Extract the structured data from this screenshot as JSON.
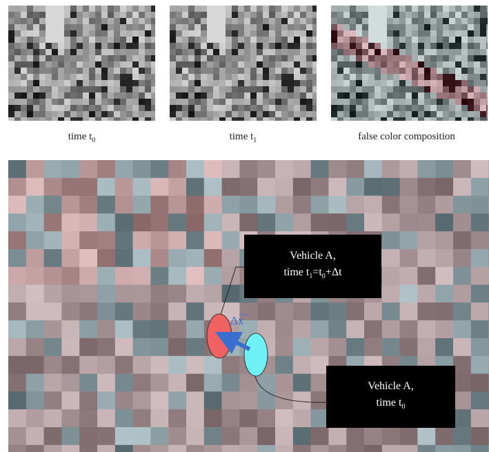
{
  "figure": {
    "captions": [
      [
        "time t",
        "0"
      ],
      [
        "time t",
        "1"
      ],
      [
        "false color composition"
      ]
    ],
    "annotations": {
      "vehicle_t1": {
        "line1": "Vehicle A,",
        "line2": [
          "time t",
          "1",
          "=t",
          "0",
          "+Δt"
        ]
      },
      "vehicle_t0": {
        "line1": "Vehicle A,",
        "line2": [
          "time t",
          "0"
        ]
      }
    },
    "displacement": "Δx"
  }
}
